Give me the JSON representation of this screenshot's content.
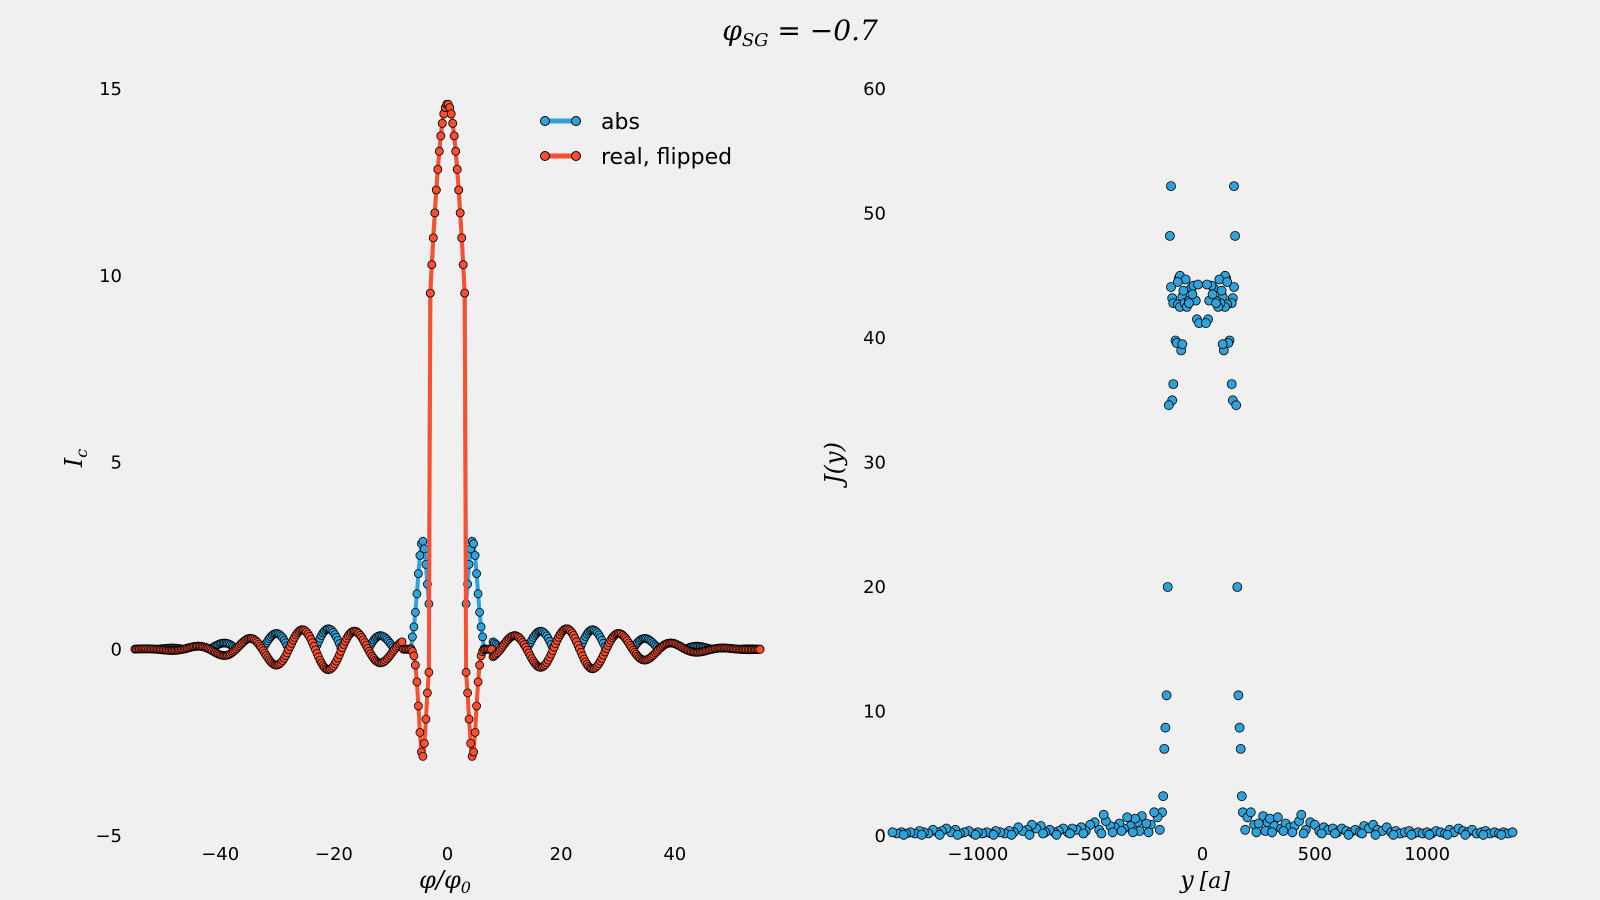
{
  "figure": {
    "suptitle": "φ_SG = −0.7",
    "title_main": "φ",
    "title_sub": "SG",
    "title_rest": " = −0.7"
  },
  "colors": {
    "abs": "#30a2da",
    "real": "#fc4f30",
    "background": "#f0f0f0"
  },
  "chart_data": [
    {
      "type": "line",
      "xlabel": "φ/φ0",
      "xlabel_main": "φ/φ",
      "xlabel_sub": "0",
      "ylabel": "I_c",
      "ylabel_main": "I",
      "ylabel_sub": "c",
      "xlim": [
        -55,
        55
      ],
      "ylim": [
        -5,
        15
      ],
      "xticks": [
        -40,
        -20,
        0,
        20,
        40
      ],
      "yticks": [
        -5,
        0,
        5,
        10,
        15
      ],
      "xtick_labels": [
        "−40",
        "−20",
        "0",
        "20",
        "40"
      ],
      "ytick_labels": [
        "−5",
        "0",
        "5",
        "10",
        "15"
      ],
      "grid": false,
      "legend_position": "top-right",
      "series": [
        {
          "name": "abs",
          "color": "#30a2da",
          "description": "|I_c| vs flux; central peak 14.6 at 0, side lobes 2.85 at ±4.4, decaying oscillations (≈0.6 near ±31)"
        },
        {
          "name": "real, flipped",
          "color": "#fc4f30",
          "description": "real part with sign flips; minima −2.9 at ±4.4, −1.2 at ±10, −0.75 at ±31"
        }
      ],
      "generator": {
        "x_range": [
          -55,
          55
        ],
        "n_points": 420,
        "peak_height": 14.6,
        "first_lobe_height": 2.9
      }
    },
    {
      "type": "scatter",
      "xlabel": "y [a]",
      "xlabel_main": "y",
      "xlabel_bracket": "[a]",
      "ylabel": "J(y)",
      "xlim": [
        -1400,
        1400
      ],
      "ylim": [
        0,
        60
      ],
      "xticks": [
        -1000,
        -500,
        0,
        500,
        1000
      ],
      "yticks": [
        0,
        10,
        20,
        30,
        40,
        50,
        60
      ],
      "xtick_labels": [
        "−1000",
        "−500",
        "0",
        "500",
        "1000"
      ],
      "ytick_labels": [
        "0",
        "10",
        "20",
        "30",
        "40",
        "50",
        "60"
      ],
      "grid": false,
      "color": "#30a2da",
      "symmetric": true,
      "points": [
        [
          -140,
          52.2
        ],
        [
          -145,
          48.2
        ],
        [
          -140,
          44.1
        ],
        [
          -135,
          43.2
        ],
        [
          -130,
          42.8
        ],
        [
          -120,
          39.8
        ],
        [
          -115,
          39.6
        ],
        [
          -95,
          39.0
        ],
        [
          -90,
          39.5
        ],
        [
          -110,
          42.7
        ],
        [
          -100,
          42.5
        ],
        [
          -90,
          43.3
        ],
        [
          -80,
          42.8
        ],
        [
          -70,
          42.5
        ],
        [
          -60,
          43.0
        ],
        [
          -50,
          44.0
        ],
        [
          -40,
          44.2
        ],
        [
          -30,
          43.0
        ],
        [
          -25,
          41.5
        ],
        [
          -15,
          41.2
        ],
        [
          -105,
          44.8
        ],
        [
          -100,
          45.0
        ],
        [
          -75,
          44.7
        ],
        [
          -110,
          44.5
        ],
        [
          -60,
          42.8
        ],
        [
          -45,
          43.5
        ],
        [
          -20,
          44.3
        ],
        [
          -85,
          43.8
        ],
        [
          -130,
          36.3
        ],
        [
          -135,
          35.0
        ],
        [
          -150,
          34.6
        ],
        [
          -155,
          20.0
        ],
        [
          -160,
          11.3
        ],
        [
          -165,
          8.7
        ],
        [
          -170,
          7.0
        ],
        [
          -175,
          3.2
        ],
        [
          -180,
          1.9
        ],
        [
          -200,
          1.5
        ],
        [
          -215,
          1.9
        ],
        [
          -230,
          0.9
        ],
        [
          -250,
          1.0
        ],
        [
          -270,
          1.6
        ],
        [
          -290,
          1.1
        ],
        [
          -300,
          1.4
        ],
        [
          -320,
          0.8
        ],
        [
          -335,
          1.5
        ],
        [
          -350,
          0.6
        ],
        [
          -370,
          1.0
        ],
        [
          -390,
          0.7
        ],
        [
          -410,
          0.8
        ],
        [
          -430,
          1.2
        ],
        [
          -440,
          1.7
        ],
        [
          -460,
          0.5
        ],
        [
          -480,
          1.1
        ],
        [
          -500,
          0.9
        ],
        [
          -520,
          0.4
        ],
        [
          -540,
          0.7
        ],
        [
          -560,
          0.5
        ],
        [
          -580,
          0.6
        ],
        [
          -600,
          0.3
        ],
        [
          -620,
          0.6
        ],
        [
          -640,
          0.4
        ],
        [
          -660,
          0.3
        ],
        [
          -680,
          0.5
        ],
        [
          -700,
          0.3
        ],
        [
          -720,
          0.8
        ],
        [
          -740,
          0.6
        ],
        [
          -760,
          0.9
        ],
        [
          -780,
          0.5
        ],
        [
          -800,
          0.4
        ],
        [
          -820,
          0.7
        ],
        [
          -840,
          0.3
        ],
        [
          -860,
          0.4
        ],
        [
          -880,
          0.2
        ],
        [
          -900,
          0.3
        ],
        [
          -920,
          0.4
        ],
        [
          -940,
          0.2
        ],
        [
          -960,
          0.3
        ],
        [
          -980,
          0.2
        ],
        [
          -1000,
          0.3
        ],
        [
          -1020,
          0.2
        ],
        [
          -1040,
          0.4
        ],
        [
          -1060,
          0.3
        ],
        [
          -1080,
          0.2
        ],
        [
          -1100,
          0.5
        ],
        [
          -1120,
          0.3
        ],
        [
          -1140,
          0.6
        ],
        [
          -1160,
          0.4
        ],
        [
          -1180,
          0.3
        ],
        [
          -1200,
          0.5
        ],
        [
          -1220,
          0.2
        ],
        [
          -1240,
          0.3
        ],
        [
          -1260,
          0.4
        ],
        [
          -1280,
          0.2
        ],
        [
          -1300,
          0.3
        ],
        [
          -1320,
          0.2
        ],
        [
          -1340,
          0.3
        ],
        [
          -1360,
          0.2
        ],
        [
          -1380,
          0.3
        ],
        [
          -190,
          0.5
        ],
        [
          -240,
          0.3
        ],
        [
          -280,
          0.4
        ],
        [
          -310,
          0.3
        ],
        [
          -360,
          0.4
        ],
        [
          -400,
          0.3
        ],
        [
          -450,
          0.2
        ],
        [
          -530,
          0.2
        ],
        [
          -590,
          0.2
        ],
        [
          -650,
          0.1
        ],
        [
          -710,
          0.2
        ],
        [
          -770,
          0.1
        ],
        [
          -850,
          0.1
        ],
        [
          -930,
          0.1
        ],
        [
          -1010,
          0.1
        ],
        [
          -1090,
          0.1
        ],
        [
          -1170,
          0.1
        ],
        [
          -1250,
          0.1
        ],
        [
          -1330,
          0.1
        ]
      ]
    }
  ],
  "legend": {
    "items": [
      {
        "label": "abs",
        "color": "#30a2da"
      },
      {
        "label": "real, flipped",
        "color": "#fc4f30"
      }
    ]
  }
}
